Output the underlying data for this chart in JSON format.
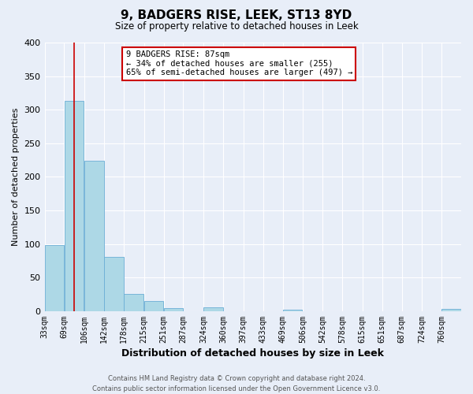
{
  "title": "9, BADGERS RISE, LEEK, ST13 8YD",
  "subtitle": "Size of property relative to detached houses in Leek",
  "xlabel": "Distribution of detached houses by size in Leek",
  "ylabel": "Number of detached properties",
  "footer_line1": "Contains HM Land Registry data © Crown copyright and database right 2024.",
  "footer_line2": "Contains public sector information licensed under the Open Government Licence v3.0.",
  "annotation_line1": "9 BADGERS RISE: 87sqm",
  "annotation_line2": "← 34% of detached houses are smaller (255)",
  "annotation_line3": "65% of semi-detached houses are larger (497) →",
  "bar_categories": [
    "33sqm",
    "69sqm",
    "106sqm",
    "142sqm",
    "178sqm",
    "215sqm",
    "251sqm",
    "287sqm",
    "324sqm",
    "360sqm",
    "397sqm",
    "433sqm",
    "469sqm",
    "506sqm",
    "542sqm",
    "578sqm",
    "615sqm",
    "651sqm",
    "687sqm",
    "724sqm",
    "760sqm"
  ],
  "bar_values": [
    99,
    313,
    224,
    81,
    26,
    15,
    5,
    0,
    6,
    0,
    0,
    0,
    2,
    0,
    0,
    0,
    0,
    0,
    0,
    0,
    3
  ],
  "bar_color": "#add8e6",
  "bar_edgecolor": "#6baed6",
  "vline_color": "#cc0000",
  "ylim": [
    0,
    400
  ],
  "yticks": [
    0,
    50,
    100,
    150,
    200,
    250,
    300,
    350,
    400
  ],
  "bg_color": "#e8eef8",
  "annotation_box_color": "#cc0000",
  "annotation_bg_color": "white",
  "grid_color": "#ffffff"
}
